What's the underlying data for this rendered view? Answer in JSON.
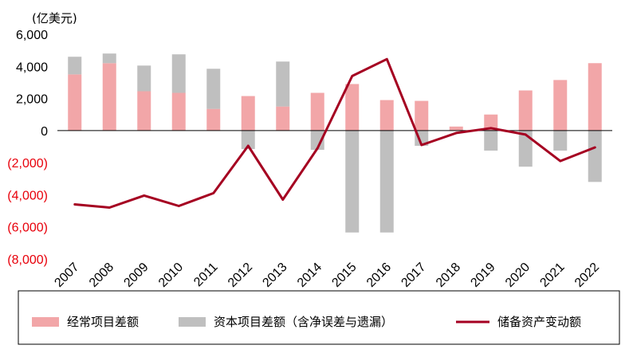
{
  "chart_data": {
    "type": "bar",
    "stacked": true,
    "unit": "(亿美元)",
    "categories": [
      "2007",
      "2008",
      "2009",
      "2010",
      "2011",
      "2012",
      "2013",
      "2014",
      "2015",
      "2016",
      "2017",
      "2018",
      "2019",
      "2020",
      "2021",
      "2022"
    ],
    "ylim": [
      -8000,
      6000
    ],
    "yticks": [
      -8000,
      -6000,
      -4000,
      -2000,
      0,
      2000,
      4000,
      6000
    ],
    "ytick_labels": [
      "(8,000)",
      "(6,000)",
      "(4,000)",
      "(2,000)",
      "0",
      "2,000",
      "4,000",
      "6,000"
    ],
    "negative_tick_color": "#e8000b",
    "positive_tick_color": "#000000",
    "grid": false,
    "legend_position": "bottom",
    "series": [
      {
        "name": "经常项目差额",
        "kind": "bar",
        "color": "#f2a6a8",
        "values": [
          3500,
          4200,
          2450,
          2350,
          1350,
          2150,
          1500,
          2350,
          2900,
          1900,
          1850,
          250,
          1000,
          2500,
          3150,
          4200
        ]
      },
      {
        "name": "资本项目差额（含净误差与遗漏）",
        "kind": "bar",
        "color": "#bfbfbf",
        "values": [
          1100,
          600,
          1600,
          2400,
          2500,
          -1150,
          2800,
          -1200,
          -6350,
          -6350,
          -950,
          0,
          -1250,
          -2250,
          -1250,
          -3200
        ]
      },
      {
        "name": "储备资产变动额",
        "kind": "line",
        "color": "#a50021",
        "values": [
          -4600,
          -4800,
          -4050,
          -4700,
          -3900,
          -950,
          -4300,
          -1100,
          3400,
          4450,
          -900,
          -150,
          150,
          -250,
          -1900,
          -1050
        ]
      }
    ]
  }
}
